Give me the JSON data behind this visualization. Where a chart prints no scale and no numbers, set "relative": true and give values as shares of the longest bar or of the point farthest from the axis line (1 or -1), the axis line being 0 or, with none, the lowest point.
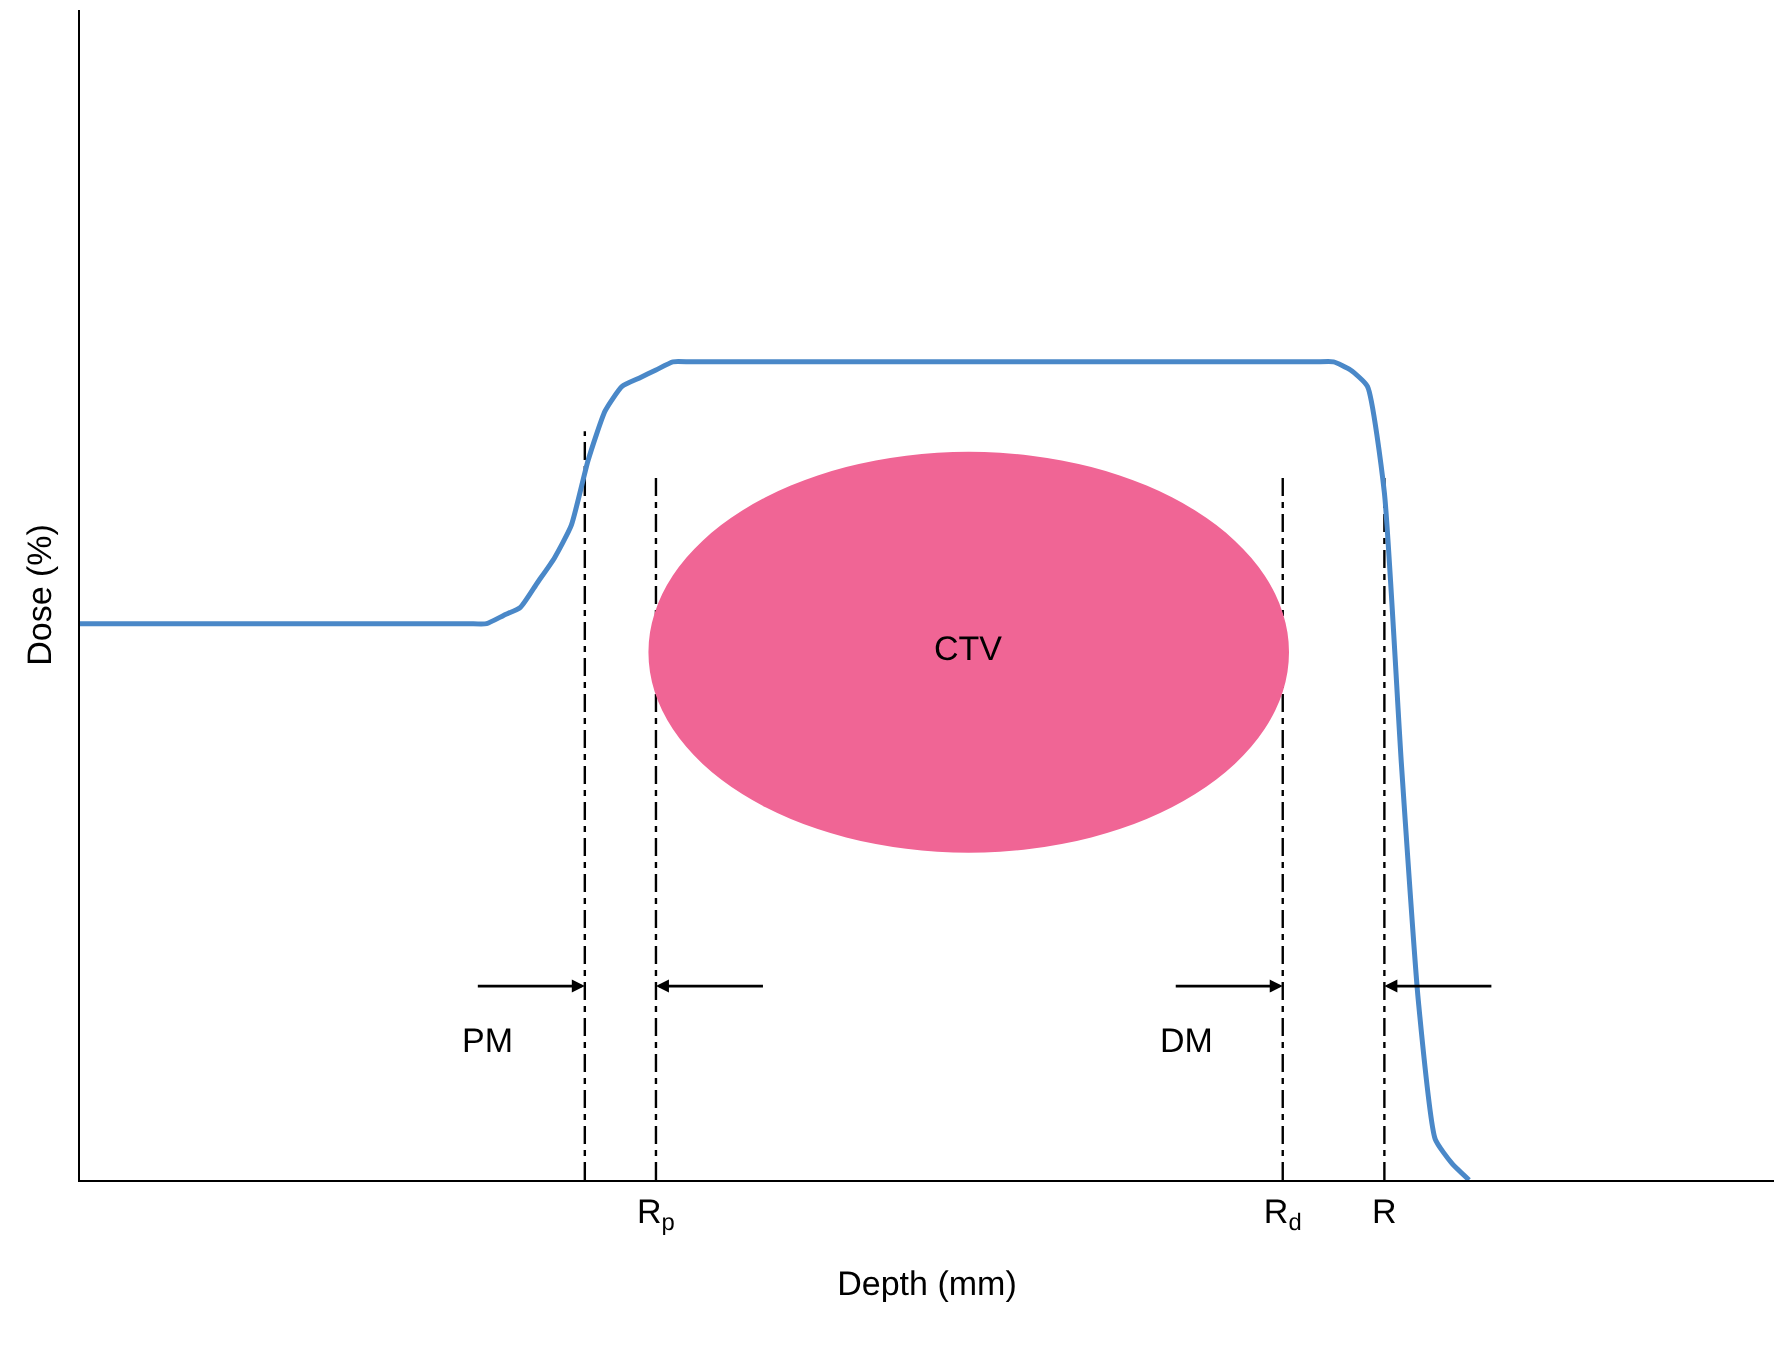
{
  "chart_data": {
    "type": "line",
    "relative": true,
    "xlabel": "Depth (mm)",
    "ylabel": "Dose (%)",
    "categories": [
      null,
      null,
      null,
      null,
      null,
      null,
      null,
      null,
      null,
      null,
      null,
      null,
      null,
      null,
      null,
      null,
      null,
      null,
      null,
      null,
      null,
      null,
      null,
      null,
      null,
      null,
      null,
      null,
      null,
      null,
      null,
      null,
      null,
      null,
      "R$_{p}$",
      null,
      null,
      null,
      null,
      null,
      null,
      null,
      null,
      null,
      null,
      null,
      null,
      null,
      null,
      null,
      null,
      null,
      null,
      null,
      null,
      null,
      null,
      null,
      null,
      null,
      null,
      null,
      null,
      null,
      null,
      null,
      null,
      null,
      null,
      null,
      null,
      "R$_{d}$",
      null,
      null,
      null,
      null,
      null,
      "R",
      null,
      null,
      null,
      null,
      null,
      null,
      null,
      null,
      null,
      null,
      null,
      null,
      null,
      null,
      null,
      null,
      null,
      null,
      null,
      null,
      null,
      null,
      null
    ],
    "series": [
      {
        "color": "#4a88c8",
        "line_style": "solid",
        "values": [
          0.68,
          0.68,
          0.68,
          0.68,
          0.68,
          0.68,
          0.68,
          0.68,
          0.68,
          0.68,
          0.68,
          0.68,
          0.68,
          0.68,
          0.68,
          0.68,
          0.68,
          0.68,
          0.68,
          0.68,
          0.68,
          0.68,
          0.68,
          0.68,
          0.68,
          0.69,
          0.7,
          0.73,
          0.76,
          0.8,
          0.88,
          0.94,
          0.97,
          0.98,
          0.99,
          1,
          1,
          1,
          1,
          1,
          1,
          1,
          1,
          1,
          1,
          1,
          1,
          1,
          1,
          1,
          1,
          1,
          1,
          1,
          1,
          1,
          1,
          1,
          1,
          1,
          1,
          1,
          1,
          1,
          1,
          1,
          1,
          1,
          1,
          1,
          1,
          1,
          1,
          1,
          1,
          0.99,
          0.97,
          0.84,
          0.51,
          0.22,
          0.05,
          0.02,
          0,
          null,
          null,
          null,
          null,
          null,
          null,
          null,
          null,
          null,
          null,
          null,
          null,
          null,
          null,
          null,
          null,
          null,
          null
        ]
      }
    ],
    "ref_lines": [
      {
        "axis": "x",
        "value": "R$_{p}$",
        "color": "#000000",
        "line_style": "dashed"
      },
      {
        "axis": "x",
        "value": "R$_{d}$",
        "color": "#000000",
        "line_style": "dashed"
      },
      {
        "axis": "x",
        "value": "R",
        "color": "#000000",
        "line_style": "dashed"
      }
    ],
    "annotations": [
      "CTV",
      "PM",
      "DM"
    ],
    "grid": false,
    "marker": "none"
  }
}
